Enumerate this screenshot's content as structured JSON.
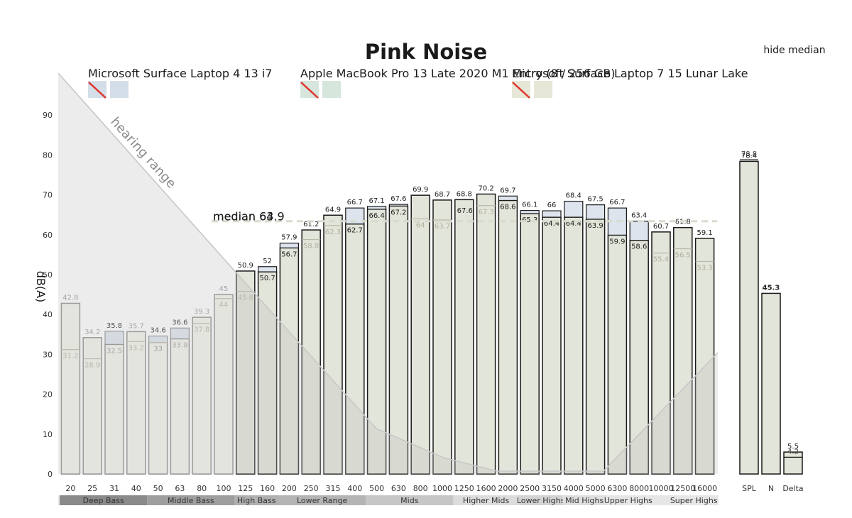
{
  "toggle": {
    "hide_median_label": "hide median"
  },
  "chart_data": {
    "type": "bar",
    "title": "Pink Noise",
    "ylabel": "dB(A)",
    "ylim": [
      0,
      100
    ],
    "yticks": [
      0,
      10,
      20,
      30,
      40,
      50,
      60,
      70,
      80,
      90
    ],
    "categories": [
      "20",
      "25",
      "31",
      "40",
      "50",
      "63",
      "80",
      "100",
      "125",
      "160",
      "200",
      "250",
      "315",
      "400",
      "500",
      "630",
      "800",
      "1000",
      "1250",
      "1600",
      "2000",
      "2500",
      "3150",
      "4000",
      "5000",
      "6300",
      "8000",
      "10000",
      "12500",
      "16000"
    ],
    "series": [
      {
        "name": "Microsoft Surface Laptop 4 13 i7",
        "color": "#d3dee8",
        "values": [
          null,
          null,
          35.8,
          null,
          34.6,
          36.6,
          null,
          null,
          null,
          52,
          57.9,
          null,
          null,
          66.7,
          67.1,
          67.6,
          null,
          null,
          67.6,
          null,
          69.7,
          66.1,
          66,
          68.4,
          67.5,
          66.7,
          63.4,
          null,
          null,
          null
        ]
      },
      {
        "name": "Apple MacBook Pro 13 Late 2020 M1 Entry (8 / 256 GB)",
        "color": "#d6e6dc",
        "values": [
          null,
          null,
          null,
          null,
          null,
          null,
          null,
          null,
          null,
          null,
          null,
          null,
          null,
          null,
          null,
          null,
          null,
          null,
          null,
          null,
          null,
          null,
          null,
          null,
          null,
          null,
          null,
          null,
          null,
          null
        ]
      },
      {
        "name": "Microsoft Surface Laptop 7 15 Lunar Lake",
        "color": "#e6e7d6",
        "values": [
          42.8,
          34.2,
          32.5,
          35.7,
          33,
          33.9,
          39.3,
          45,
          50.9,
          50.7,
          56.7,
          61.2,
          64.9,
          62.7,
          66.4,
          67.2,
          69.9,
          68.7,
          68.8,
          70.2,
          68.6,
          65.3,
          64.4,
          64.4,
          63.9,
          59.9,
          58.6,
          60.7,
          61.8,
          59.1
        ]
      }
    ],
    "secondary_values": [
      31.2,
      28.9,
      null,
      33.2,
      33,
      null,
      37.8,
      44,
      45.8,
      null,
      null,
      58.8,
      62.3,
      null,
      null,
      null,
      64,
      63.7,
      null,
      67.3,
      null,
      null,
      null,
      null,
      null,
      null,
      null,
      55.4,
      56.5,
      53.3
    ],
    "summary": {
      "categories": [
        "SPL",
        "N",
        "Delta"
      ],
      "values": [
        78.4,
        45.3,
        5.5
      ],
      "secondary_values": [
        78.8,
        null,
        4.2
      ]
    },
    "median": {
      "label": "median",
      "values": [
        "64",
        "63.9"
      ],
      "y": 63.4
    },
    "hearing_range": {
      "label": "hearing range"
    },
    "bands": [
      "Deep Bass",
      "Middle Bass",
      "High Bass",
      "Lower Range",
      "Mids",
      "Higher Mids",
      "Lower Highs",
      "Mid Highs",
      "Upper Highs",
      "Super Highs"
    ]
  }
}
